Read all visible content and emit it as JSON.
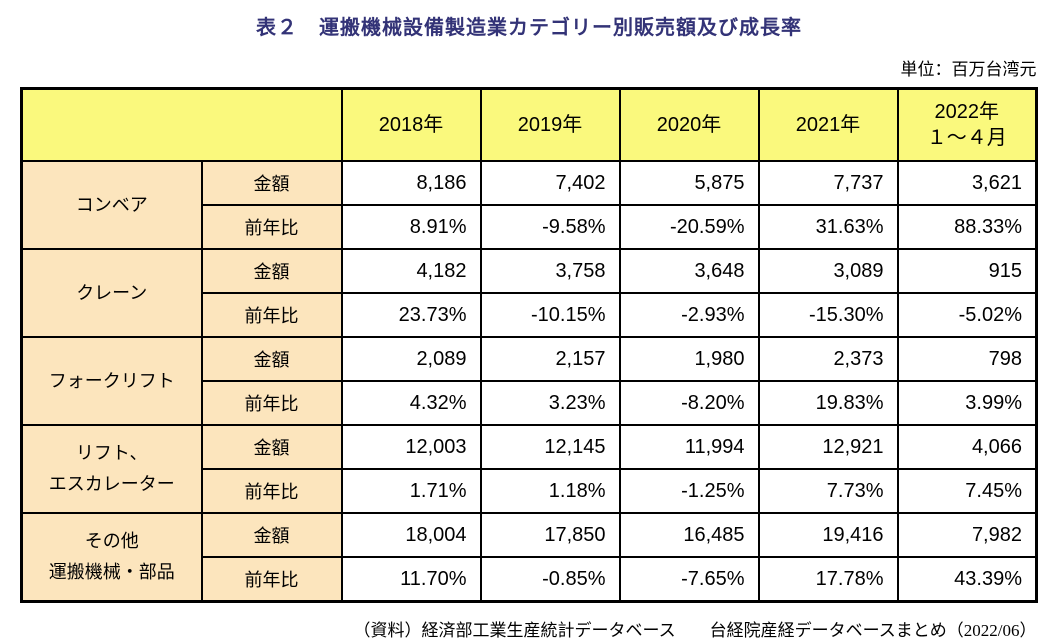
{
  "page": {
    "title": "表２　運搬機械設備製造業カテゴリー別販売額及び成長率",
    "unit_label": "単位：百万台湾元",
    "source_note": "（資料）経済部工業生産統計データベース　　台経院産経データベースまとめ（2022/06）"
  },
  "table": {
    "year_headers": [
      "2018年",
      "2019年",
      "2020年",
      "2021年",
      "2022年\n１～４月"
    ],
    "metric_labels": {
      "amount": "金額",
      "yoy": "前年比"
    },
    "rows": [
      {
        "category": "コンベア",
        "amount": [
          "8,186",
          "7,402",
          "5,875",
          "7,737",
          "3,621"
        ],
        "yoy": [
          "8.91%",
          "-9.58%",
          "-20.59%",
          "31.63%",
          "88.33%"
        ]
      },
      {
        "category": "クレーン",
        "amount": [
          "4,182",
          "3,758",
          "3,648",
          "3,089",
          "915"
        ],
        "yoy": [
          "23.73%",
          "-10.15%",
          "-2.93%",
          "-15.30%",
          "-5.02%"
        ]
      },
      {
        "category": "フォークリフト",
        "amount": [
          "2,089",
          "2,157",
          "1,980",
          "2,373",
          "798"
        ],
        "yoy": [
          "4.32%",
          "3.23%",
          "-8.20%",
          "19.83%",
          "3.99%"
        ]
      },
      {
        "category": "リフト、\nエスカレーター",
        "amount": [
          "12,003",
          "12,145",
          "11,994",
          "12,921",
          "4,066"
        ],
        "yoy": [
          "1.71%",
          "1.18%",
          "-1.25%",
          "7.73%",
          "7.45%"
        ]
      },
      {
        "category": "その他\n運搬機械・部品",
        "amount": [
          "18,004",
          "17,850",
          "16,485",
          "19,416",
          "7,982"
        ],
        "yoy": [
          "11.70%",
          "-0.85%",
          "-7.65%",
          "17.78%",
          "43.39%"
        ]
      }
    ]
  },
  "chart_data": {
    "type": "table",
    "title": "運搬機械設備製造業カテゴリー別販売額及び成長率",
    "unit": "百万台湾元",
    "columns": [
      "2018年",
      "2019年",
      "2020年",
      "2021年",
      "2022年１～４月"
    ],
    "row_metrics": [
      "金額",
      "前年比"
    ],
    "series": [
      {
        "name": "コンベア",
        "amount": [
          8186,
          7402,
          5875,
          7737,
          3621
        ],
        "yoy_pct": [
          8.91,
          -9.58,
          -20.59,
          31.63,
          88.33
        ]
      },
      {
        "name": "クレーン",
        "amount": [
          4182,
          3758,
          3648,
          3089,
          915
        ],
        "yoy_pct": [
          23.73,
          -10.15,
          -2.93,
          -15.3,
          -5.02
        ]
      },
      {
        "name": "フォークリフト",
        "amount": [
          2089,
          2157,
          1980,
          2373,
          798
        ],
        "yoy_pct": [
          4.32,
          3.23,
          -8.2,
          19.83,
          3.99
        ]
      },
      {
        "name": "リフト、エスカレーター",
        "amount": [
          12003,
          12145,
          11994,
          12921,
          4066
        ],
        "yoy_pct": [
          1.71,
          1.18,
          -1.25,
          7.73,
          7.45
        ]
      },
      {
        "name": "その他運搬機械・部品",
        "amount": [
          18004,
          17850,
          16485,
          19416,
          7982
        ],
        "yoy_pct": [
          11.7,
          -0.85,
          -7.65,
          17.78,
          43.39
        ]
      }
    ]
  },
  "colors": {
    "title_navy": "#333377",
    "header_yellow": "#faf97d",
    "label_peach": "#fce5bd",
    "border_black": "#000000"
  }
}
